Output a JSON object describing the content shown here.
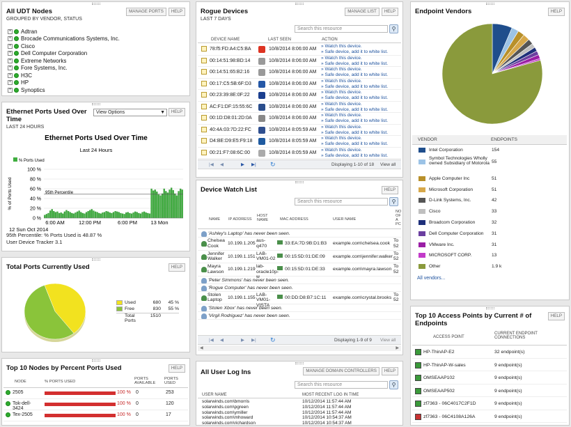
{
  "udt": {
    "title": "All UDT Nodes",
    "subtitle": "GROUPED BY VENDOR, STATUS",
    "manage": "MANAGE PORTS",
    "help": "HELP",
    "items": [
      "Adtran",
      "Brocade Communications Systems, Inc.",
      "Cisco",
      "Dell Computer Corporation",
      "Extreme Networks",
      "Fore Systems, Inc.",
      "H3C",
      "HP",
      "Synoptics"
    ]
  },
  "eth": {
    "title": "Ethernet Ports Used Over Time",
    "subtitle": "LAST 24 HOURS",
    "view": "View Options",
    "help": "HELP",
    "chart_data": {
      "type": "bar",
      "title": "Ethernet Ports Used Over Time",
      "subtitle": "Last 24 Hours",
      "legend": "% Ports Used",
      "ylabel": "% of Ports Used",
      "percentile_label": "95th Percentile",
      "yticks": [
        "100 %",
        "80 %",
        "60 %",
        "40 %",
        "20 %",
        "0 %"
      ],
      "xticks": [
        "6:00 AM",
        "12:00 PM",
        "6:00 PM",
        "13 Mon"
      ],
      "date": "12 Sun Oct 2014",
      "ylim": [
        0,
        100
      ],
      "percentile": 48.87,
      "values": [
        6,
        8,
        10,
        15,
        18,
        14,
        12,
        13,
        10,
        11,
        9,
        13,
        16,
        14,
        12,
        10,
        9,
        11,
        13,
        15,
        12,
        10,
        9,
        12,
        14,
        16,
        18,
        15,
        13,
        12,
        10,
        9,
        11,
        12,
        14,
        13,
        11,
        10,
        12,
        14,
        13,
        12,
        10,
        9,
        8,
        11,
        12,
        10,
        9,
        11,
        13,
        12,
        10,
        9,
        12,
        13,
        11,
        10,
        9,
        60,
        56,
        58,
        54,
        48,
        46,
        50,
        60,
        55,
        52,
        58,
        62,
        57,
        50,
        46,
        55,
        60,
        58
      ]
    },
    "footer1": "95th Percentile: % Ports Used is 48.87 %",
    "footer2": "User Device Tracker 3.1"
  },
  "total": {
    "title": "Total Ports Currently Used",
    "help": "HELP",
    "chart_data": {
      "type": "pie",
      "values": [
        680,
        830
      ],
      "labels": [
        "Used",
        "Free"
      ],
      "colors": [
        "#f2e21f",
        "#8ac43a"
      ]
    },
    "rows": [
      {
        "label": "Used",
        "count": "680",
        "pct": "45 %"
      },
      {
        "label": "Free",
        "count": "830",
        "pct": "55 %"
      }
    ],
    "total_label": "Total Ports",
    "total_count": "1510"
  },
  "top10": {
    "title": "Top 10 Nodes by Percent Ports Used",
    "help": "HELP",
    "h": [
      "NODE",
      "% PORTS USED",
      "PORTS AVAILABLE",
      "PORTS USED"
    ],
    "rows": [
      {
        "node": "2505",
        "pct": "100 %",
        "avail": "0",
        "used": "253"
      },
      {
        "node": "Tok-dell-3424",
        "pct": "100 %",
        "avail": "0",
        "used": "120"
      },
      {
        "node": "Tex-2505",
        "pct": "100 %",
        "avail": "0",
        "used": "17"
      }
    ]
  },
  "rogue": {
    "title": "Rogue Devices",
    "subtitle": "LAST 7 DAYS",
    "manage": "MANAGE LIST",
    "help": "HELP",
    "search": "Search this resource",
    "h": [
      "DEVICE NAME",
      "LAST SEEN",
      "ACTION"
    ],
    "a1": "» Watch this device.",
    "a2": "» Safe device, add it to white list.",
    "rows": [
      {
        "mac": "78:f5:FD:A4:C5:BA",
        "time": "10/8/2014 8:06:00 AM",
        "ic": "#d32"
      },
      {
        "mac": "00:14:51:98:BD:14",
        "time": "10/8/2014 8:06:00 AM",
        "ic": "#999"
      },
      {
        "mac": "00:14:51:65:B2:16",
        "time": "10/8/2014 8:06:00 AM",
        "ic": "#999"
      },
      {
        "mac": "00:17:C5:5B:6F:D3",
        "time": "10/8/2014 8:06:00 AM",
        "ic": "#2457a6"
      },
      {
        "mac": "00:23:39:8E:0F:22",
        "time": "10/8/2014 8:06:00 AM",
        "ic": "#1b3f8f"
      },
      {
        "mac": "AC:F1:DF:15:55:6C",
        "time": "10/8/2014 8:06:00 AM",
        "ic": "#2a4d8c"
      },
      {
        "mac": "00:1D:D8:01:2D:0A",
        "time": "10/8/2014 8:06:00 AM",
        "ic": "#888"
      },
      {
        "mac": "40:4A:03:7D:22:FC",
        "time": "10/8/2014 8:05:59 AM",
        "ic": "#2f4f8f"
      },
      {
        "mac": "D4:BE:D9:E5:F9:18",
        "time": "10/8/2014 8:05:59 AM",
        "ic": "#1f5aa0"
      },
      {
        "mac": "00:21:F7:08:6C:00",
        "time": "10/8/2014 8:05:59 AM",
        "ic": "#aaa"
      }
    ],
    "displaying": "Displaying 1-10 of 18",
    "viewall": "View all"
  },
  "watch": {
    "title": "Device Watch List",
    "help": "HELP",
    "search": "Search this resource",
    "h": [
      "NAME",
      "IP ADDRESS",
      "HOST NAME",
      "MAC ADDRESS",
      "USER NAME",
      "NO OF A PC"
    ],
    "rows": [
      {
        "msg": "'Ashley's Laptop' has never been seen."
      },
      {
        "name": "Chelsea Cook",
        "ip": "10.199.1.205",
        "host": "aus-q470",
        "mac": "33:EA:7D:9B:D1:B3",
        "user": "example.com\\chelsea.cook",
        "n": "To 52"
      },
      {
        "name": "Jennifer Walker",
        "ip": "10.199.1.151",
        "host": "LAB-VM01-02",
        "mac": "00:15:5D:01:DE:09",
        "user": "example.com\\jennifer.walker",
        "n": "To 52"
      },
      {
        "name": "Mayra Lawson",
        "ip": "10.199.1.219",
        "host": "lab-oracle10p-w",
        "mac": "00:15:5D:01:DE:33",
        "user": "example.com\\mayra.lawson",
        "n": "To 52"
      },
      {
        "msg": "'Peter Simmons' has never been seen."
      },
      {
        "msg": "'Rogue Computer' has never been seen."
      },
      {
        "name": "Stolen Laptop",
        "ip": "10.199.1.155",
        "host": "LAB-VM01-VISTA",
        "mac": "00:DD:D8:B7:1C:11",
        "user": "example.com\\crystal.brooks",
        "n": "To 52"
      },
      {
        "msg": "'Stolen Xbox' has never been seen."
      },
      {
        "msg": "'Virgil Rodriguez' has never been seen."
      }
    ],
    "displaying": "Displaying 1-9 of 9",
    "viewall": "View all"
  },
  "logins": {
    "title": "All User Log Ins",
    "manage": "MANAGE DOMAIN CONTROLLERS",
    "help": "HELP",
    "search": "Search this resource",
    "h": [
      "USER NAME",
      "MOST RECENT LOG IN TIME"
    ],
    "rows": [
      {
        "u": "solarwinds.com\\bmorris",
        "t": "10/12/2014 11:57:44 AM"
      },
      {
        "u": "solarwinds.com\\pgreen",
        "t": "10/12/2014 11:57:44 AM"
      },
      {
        "u": "solarwinds.com\\ymiller",
        "t": "10/12/2014 11:57:44 AM"
      },
      {
        "u": "solarwinds.com\\mhoward",
        "t": "10/12/2014 10:54:37 AM"
      },
      {
        "u": "solarwinds.com\\richardson",
        "t": "10/12/2014 10:54:37 AM"
      }
    ]
  },
  "vendors": {
    "title": "Endpoint Vendors",
    "help": "HELP",
    "h": [
      "VENDOR",
      "ENDPOINTS"
    ],
    "chart_data": {
      "type": "pie",
      "labels": [
        "Intel Corporation",
        "Symbol Technologies Wholly owned Subsidiary of Motorola",
        "Apple Computer Inc",
        "Microsoft Corporation",
        "D-Link Systems, Inc.",
        "Cisco",
        "Broadcom Corporation",
        "Dell Computer Corporation",
        "VMware Inc.",
        "MICROSOFT CORP.",
        "Other"
      ],
      "values": [
        154,
        55,
        51,
        51,
        42,
        33,
        32,
        31,
        31,
        13,
        1900
      ],
      "colors": [
        "#1f4e8c",
        "#9cc3e6",
        "#b8902a",
        "#d7a84a",
        "#555555",
        "#bfbfbf",
        "#1e2f7a",
        "#6b3fa0",
        "#9a1ea5",
        "#c23bc9",
        "#8a9a3c"
      ]
    },
    "rows": [
      {
        "v": "Intel Corporation",
        "n": "154"
      },
      {
        "v": "Symbol Technologies Wholly owned Subsidiary of Motorola",
        "n": "55"
      },
      {
        "v": "Apple Computer Inc",
        "n": "51"
      },
      {
        "v": "Microsoft Corporation",
        "n": "51"
      },
      {
        "v": "D-Link Systems, Inc.",
        "n": "42"
      },
      {
        "v": "Cisco",
        "n": "33"
      },
      {
        "v": "Broadcom Corporation",
        "n": "32"
      },
      {
        "v": "Dell Computer Corporation",
        "n": "31"
      },
      {
        "v": "VMware Inc.",
        "n": "31"
      },
      {
        "v": "MICROSOFT CORP.",
        "n": "13"
      },
      {
        "v": "Other",
        "n": "1.9 k"
      }
    ],
    "all": "All vendors..."
  },
  "ap": {
    "title": "Top 10 Access Points by Current # of Endpoints",
    "help": "HELP",
    "h": [
      "ACCESS POINT",
      "CURRENT ENDPOINT CONNECTIONS"
    ],
    "rows": [
      {
        "a": "HP-ThinAP-E2",
        "c": "32 endpoint(s)",
        "ic": "#3a9a3a"
      },
      {
        "a": "HP-ThinAP-W-sales",
        "c": "9 endpoint(s)",
        "ic": "#3a9a3a"
      },
      {
        "a": "OMSEAAP102",
        "c": "9 endpoint(s)",
        "ic": "#3a9a3a"
      },
      {
        "a": "OMSEAAP502",
        "c": "9 endpoint(s)",
        "ic": "#3a9a3a"
      },
      {
        "a": "zf7363 - 06C4017C2F1D",
        "c": "9 endpoint(s)",
        "ic": "#3a9a3a"
      },
      {
        "a": "zf7363 - 06C4108A126A",
        "c": "9 endpoint(s)",
        "ic": "#c83232"
      }
    ]
  }
}
